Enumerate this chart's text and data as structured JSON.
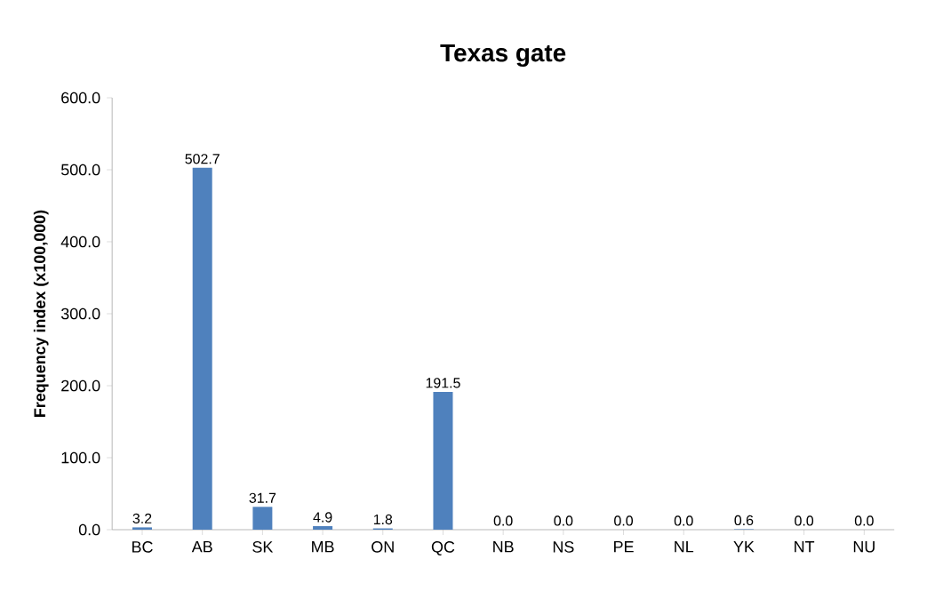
{
  "chart_data": {
    "type": "bar",
    "title": "Texas gate",
    "ylabel": "Frequency index (x100,000)",
    "categories": [
      "BC",
      "AB",
      "SK",
      "MB",
      "ON",
      "QC",
      "NB",
      "NS",
      "PE",
      "NL",
      "YK",
      "NT",
      "NU"
    ],
    "values": [
      3.2,
      502.7,
      31.7,
      4.9,
      1.8,
      191.5,
      0.0,
      0.0,
      0.0,
      0.0,
      0.6,
      0.0,
      0.0
    ],
    "value_labels": [
      "3.2",
      "502.7",
      "31.7",
      "4.9",
      "1.8",
      "191.5",
      "0.0",
      "0.0",
      "0.0",
      "0.0",
      "0.6",
      "0.0",
      "0.0"
    ],
    "color": "#4f81bd",
    "ylim": [
      0,
      600
    ],
    "yticks": [
      {
        "value": 0,
        "label": "0.0"
      },
      {
        "value": 100,
        "label": "100.0"
      },
      {
        "value": 200,
        "label": "200.0"
      },
      {
        "value": 300,
        "label": "300.0"
      },
      {
        "value": 400,
        "label": "400.0"
      },
      {
        "value": 500,
        "label": "500.0"
      },
      {
        "value": 600,
        "label": "600.0"
      }
    ]
  }
}
